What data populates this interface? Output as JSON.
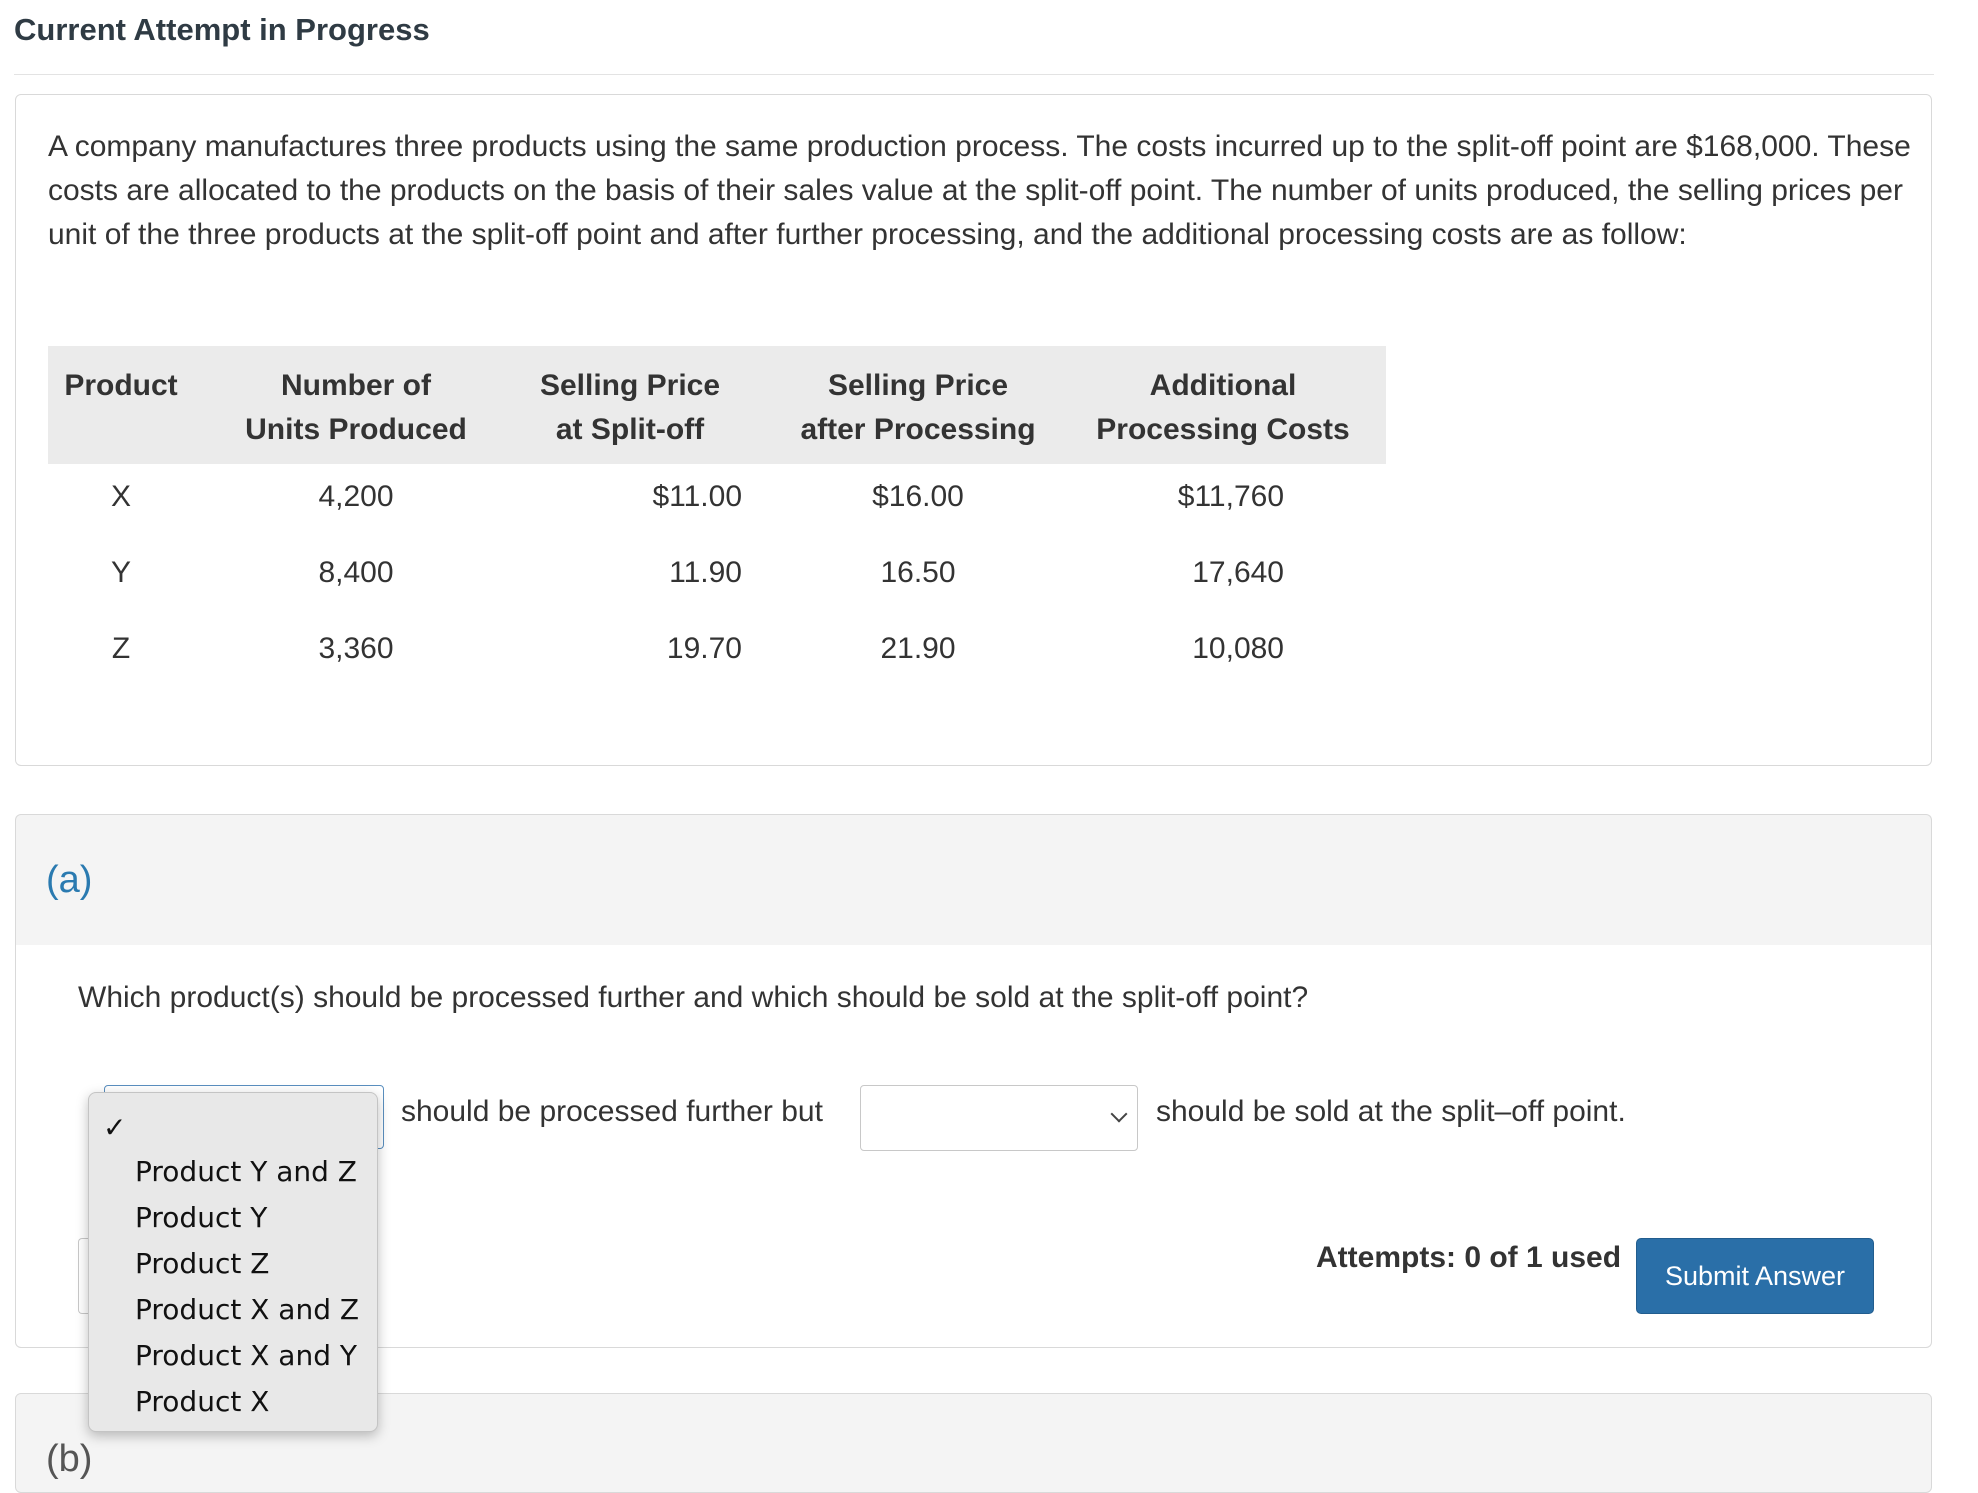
{
  "header": {
    "title": "Current Attempt in Progress"
  },
  "problem": {
    "text": "A company manufactures three products using the same production process. The costs incurred up to the split-off point are $168,000. These costs are allocated to the products on the basis of their sales value at the split-off point. The number of units produced, the selling prices per unit of the three products at the split-off point and after further processing, and the additional processing costs are as follow:",
    "table": {
      "headers": [
        {
          "line1": "",
          "line2": "Product"
        },
        {
          "line1": "Number of",
          "line2": "Units Produced"
        },
        {
          "line1": "Selling Price",
          "line2": "at Split-off"
        },
        {
          "line1": "Selling Price",
          "line2": "after Processing"
        },
        {
          "line1": "Additional",
          "line2": "Processing Costs"
        }
      ],
      "rows": [
        [
          "X",
          "4,200",
          "$11.00",
          "$16.00",
          "$11,760"
        ],
        [
          "Y",
          "8,400",
          "11.90",
          "16.50",
          "17,640"
        ],
        [
          "Z",
          "3,360",
          "19.70",
          "21.90",
          "10,080"
        ]
      ]
    }
  },
  "part_a": {
    "label": "(a)",
    "question": "Which product(s) should be processed further and which should be sold at the split-off point?",
    "select1_value": "",
    "text_further": "should be processed further but",
    "select2_value": "",
    "text_splitoff": "should be sold at the split–off point.",
    "attempts": "Attempts: 0 of 1 used",
    "submit_label": "Submit Answer",
    "dropdown": {
      "checkmark": "✓",
      "options": [
        "Product Y and Z",
        "Product Y",
        "Product Z",
        "Product X and Z",
        "Product X and Y",
        "Product X"
      ]
    }
  },
  "part_b": {
    "label": "(b)"
  }
}
